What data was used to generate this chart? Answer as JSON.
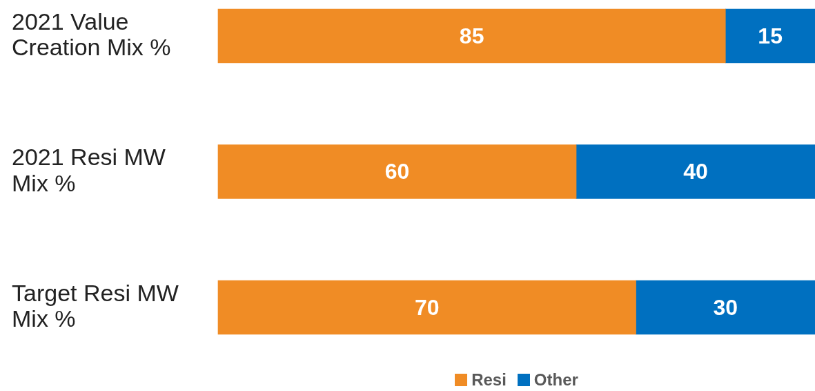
{
  "chart_data": {
    "type": "bar",
    "orientation": "horizontal",
    "stacked": true,
    "categories": [
      "2021 Value Creation Mix %",
      "2021 Resi MW Mix %",
      "Target Resi MW Mix %"
    ],
    "series": [
      {
        "name": "Resi",
        "color": "#f08c25",
        "values": [
          85,
          60,
          70
        ]
      },
      {
        "name": "Other",
        "color": "#0070c0",
        "values": [
          15,
          40,
          30
        ]
      }
    ],
    "xlim": [
      0,
      100
    ],
    "data_labels": true,
    "grid": false,
    "legend": "bottom",
    "tick_labels": "y"
  }
}
